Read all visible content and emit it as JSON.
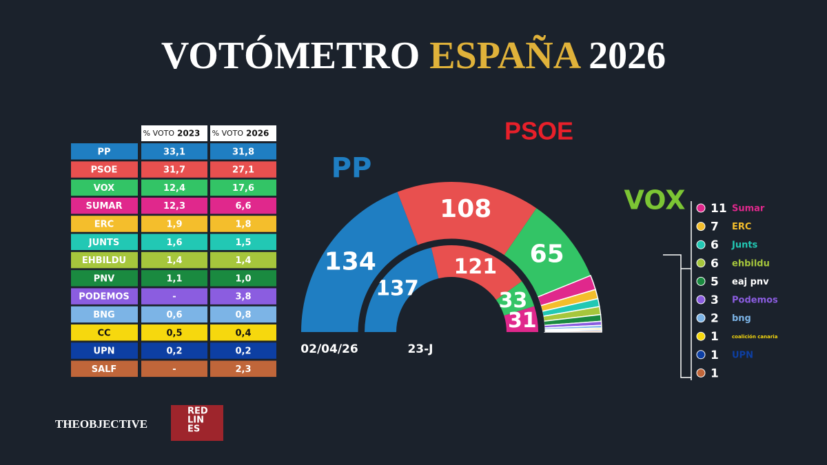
{
  "title": {
    "part1": "VOTÓMETRO",
    "part2": "ESPAÑA",
    "part3": "2026"
  },
  "table": {
    "headers": [
      {
        "prefix": "% VOTO",
        "year": "2023"
      },
      {
        "prefix": "% VOTO",
        "year": "2026"
      }
    ],
    "rows": [
      {
        "party": "PP",
        "color": "#1f7ec2",
        "text_color": "#ffffff",
        "v2023": "33,1",
        "v2026": "31,8"
      },
      {
        "party": "PSOE",
        "color": "#e8504f",
        "text_color": "#ffffff",
        "v2023": "31,7",
        "v2026": "27,1"
      },
      {
        "party": "VOX",
        "color": "#33c466",
        "text_color": "#ffffff",
        "v2023": "12,4",
        "v2026": "17,6"
      },
      {
        "party": "SUMAR",
        "color": "#e0288c",
        "text_color": "#ffffff",
        "v2023": "12,3",
        "v2026": "6,6"
      },
      {
        "party": "ERC",
        "color": "#f4be2c",
        "text_color": "#ffffff",
        "v2023": "1,9",
        "v2026": "1,8"
      },
      {
        "party": "JUNTS",
        "color": "#22c8b4",
        "text_color": "#ffffff",
        "v2023": "1,6",
        "v2026": "1,5"
      },
      {
        "party": "EHBILDU",
        "color": "#a6c63c",
        "text_color": "#ffffff",
        "v2023": "1,4",
        "v2026": "1,4"
      },
      {
        "party": "PNV",
        "color": "#1a8a40",
        "text_color": "#ffffff",
        "v2023": "1,1",
        "v2026": "1,0"
      },
      {
        "party": "PODEMOS",
        "color": "#8b5de0",
        "text_color": "#ffffff",
        "v2023": "-",
        "v2026": "3,8"
      },
      {
        "party": "BNG",
        "color": "#7cb4e6",
        "text_color": "#ffffff",
        "v2023": "0,6",
        "v2026": "0,8"
      },
      {
        "party": "CC",
        "color": "#f6d80e",
        "text_color": "#111111",
        "v2023": "0,5",
        "v2026": "0,4"
      },
      {
        "party": "UPN",
        "color": "#0d3fa3",
        "text_color": "#ffffff",
        "v2023": "0,2",
        "v2026": "0,2"
      },
      {
        "party": "SALF",
        "color": "#c0663a",
        "text_color": "#ffffff",
        "v2023": "-",
        "v2026": "2,3"
      }
    ]
  },
  "hemicycle": {
    "outer": {
      "label": "02/04/26",
      "parties": [
        {
          "label": "PP",
          "color": "#1f7ec2",
          "seats": 134
        },
        {
          "label": "PSOE",
          "color": "#e8504f",
          "seats": 108
        },
        {
          "label": "VOX",
          "color": "#33c466",
          "seats": 65
        },
        {
          "label": "Sumar",
          "color": "#e0288c",
          "seats": 11
        },
        {
          "label": "ERC",
          "color": "#f4be2c",
          "seats": 7
        },
        {
          "label": "Junts",
          "color": "#22c8b4",
          "seats": 6
        },
        {
          "label": "ehbildu",
          "color": "#a6c63c",
          "seats": 6
        },
        {
          "label": "eaj pnv",
          "color": "#1a8a40",
          "seats": 5
        },
        {
          "label": "Podemos",
          "color": "#8b5de0",
          "seats": 3
        },
        {
          "label": "bng",
          "color": "#7cb4e6",
          "seats": 2
        },
        {
          "label": "coalición canaria",
          "color": "#f6d80e",
          "seats": 1
        },
        {
          "label": "UPN",
          "color": "#0d3fa3",
          "seats": 1
        },
        {
          "color": "#c0663a",
          "seats": 1
        }
      ]
    },
    "inner": {
      "label": "23-J",
      "parties": [
        {
          "color": "#1f7ec2",
          "seats": 137
        },
        {
          "color": "#e8504f",
          "seats": 121
        },
        {
          "color": "#33c466",
          "seats": 33
        },
        {
          "color": "#e0288c",
          "seats": 31
        }
      ]
    }
  },
  "footer": {
    "brand1": "THEOBJECTIVE",
    "brand2": [
      "RED",
      "LIN",
      "ES"
    ]
  }
}
